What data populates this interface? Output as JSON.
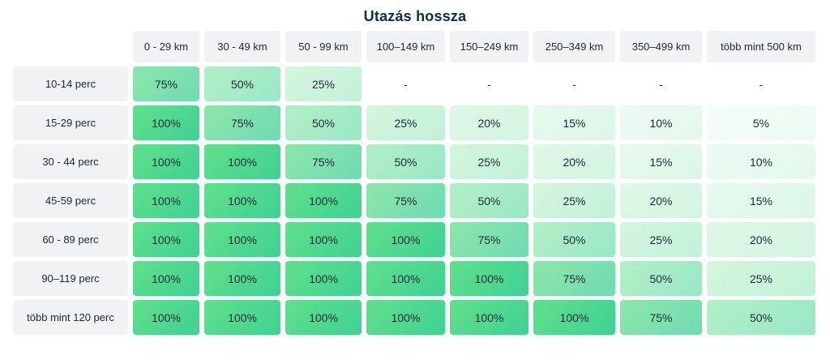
{
  "chart_data": {
    "type": "table",
    "title": "Utazás hossza",
    "columns": [
      "0 - 29 km",
      "30 - 49 km",
      "50 - 99 km",
      "100–149 km",
      "150–249 km",
      "250–349 km",
      "350–499 km",
      "több mint 500 km"
    ],
    "rows": [
      "10-14 perc",
      "15-29 perc",
      "30 - 44 perc",
      "45-59 perc",
      "60 - 89 perc",
      "90–119 perc",
      "több mint 120 perc"
    ],
    "values": [
      [
        "75%",
        "50%",
        "25%",
        "-",
        "-",
        "-",
        "-",
        "-"
      ],
      [
        "100%",
        "75%",
        "50%",
        "25%",
        "20%",
        "15%",
        "10%",
        "5%"
      ],
      [
        "100%",
        "100%",
        "75%",
        "50%",
        "25%",
        "20%",
        "15%",
        "10%"
      ],
      [
        "100%",
        "100%",
        "100%",
        "75%",
        "50%",
        "25%",
        "20%",
        "15%"
      ],
      [
        "100%",
        "100%",
        "100%",
        "100%",
        "75%",
        "50%",
        "25%",
        "20%"
      ],
      [
        "100%",
        "100%",
        "100%",
        "100%",
        "100%",
        "75%",
        "50%",
        "25%"
      ],
      [
        "100%",
        "100%",
        "100%",
        "100%",
        "100%",
        "100%",
        "75%",
        "50%"
      ]
    ],
    "colors": {
      "100": "#4fd88f",
      "75": "#80e2ad",
      "50": "#a8ecc5",
      "25": "#cbf4da",
      "20": "#d9f7e3",
      "15": "#e1f8ea",
      "10": "#e8faef",
      "5": "#f0fcf5",
      "header": "#f1f2f3"
    }
  }
}
